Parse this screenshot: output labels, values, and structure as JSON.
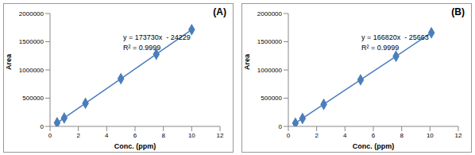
{
  "chart_data": [
    {
      "type": "scatter",
      "title": "(A)",
      "x_label": "Conc. (ppm)",
      "y_label": "Area",
      "annotations": [
        "y = 173730x  - 24229",
        "R² = 0.9999"
      ],
      "x": [
        0.5,
        1,
        2.5,
        5,
        7.5,
        10
      ],
      "values": [
        62636,
        149501,
        410096,
        844421,
        1278746,
        1713071
      ],
      "color": "#4a7ebb",
      "marker": "diamond",
      "line_style": "solid",
      "xlim": [
        0,
        12
      ],
      "xticks": [
        0,
        2,
        4,
        6,
        8,
        10,
        12
      ],
      "ylim": [
        0,
        2000000
      ],
      "yticks": [
        0,
        500000,
        1000000,
        1500000,
        2000000
      ],
      "grid": false
    },
    {
      "type": "scatter",
      "title": "(B)",
      "x_label": "Conc. (ppm)",
      "y_label": "Area",
      "annotations": [
        "y = 166820x  - 25663",
        "R² = 0.9999"
      ],
      "x": [
        0.5,
        1,
        2.5,
        5.1,
        7.6,
        10.1
      ],
      "values": [
        57747,
        141157,
        391387,
        825119,
        1242169,
        1659219
      ],
      "color": "#4a7ebb",
      "marker": "diamond",
      "line_style": "solid",
      "xlim": [
        0,
        12
      ],
      "xticks": [
        0,
        2,
        4,
        6,
        8,
        10,
        12
      ],
      "ylim": [
        0,
        2000000
      ],
      "yticks": [
        0,
        500000,
        1000000,
        1500000,
        2000000
      ],
      "grid": false
    }
  ]
}
